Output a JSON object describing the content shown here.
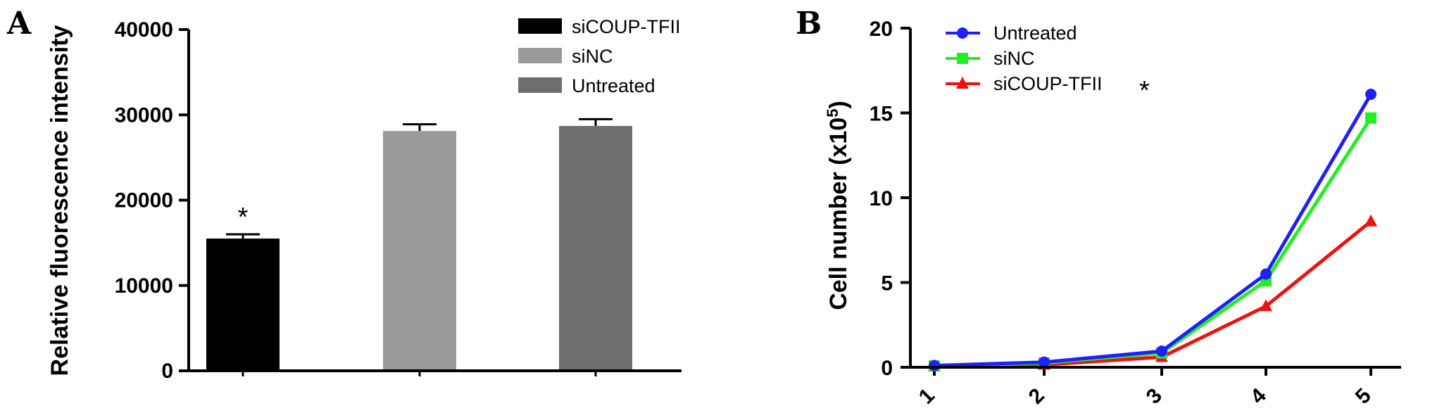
{
  "panel_a": {
    "letter": "A",
    "ylabel": "Relative fluorescence intensity",
    "significance": "*",
    "legend": [
      {
        "label": "siCOUP-TFII",
        "color": "#000000"
      },
      {
        "label": "siNC",
        "color": "#9a9a9a"
      },
      {
        "label": "Untreated",
        "color": "#6e6e6e"
      }
    ]
  },
  "panel_b": {
    "letter": "B",
    "ylabel": "Cell number (x10",
    "ylabel_sup": "5",
    "ylabel_close": ")",
    "significance": "*",
    "legend": [
      {
        "label": "Untreated",
        "color": "#1f1fff"
      },
      {
        "label": "siNC",
        "color": "#22ee22"
      },
      {
        "label": "siCOUP-TFII",
        "color": "#ee1111"
      }
    ]
  },
  "chart_data": [
    {
      "type": "bar",
      "categories": [
        "siCOUP-TFII",
        "siNC",
        "Untreated"
      ],
      "values": [
        15500,
        28100,
        28700
      ],
      "errors": [
        500,
        800,
        800
      ],
      "colors": [
        "#000000",
        "#9a9a9a",
        "#6e6e6e"
      ],
      "ylabel": "Relative fluorescence intensity",
      "ylim": [
        0,
        40000
      ],
      "yticks": [
        0,
        10000,
        20000,
        30000,
        40000
      ],
      "ytick_labels": [
        "0",
        "10000",
        "20000",
        "30000",
        "40000"
      ],
      "legend_position": "top-right",
      "grid": false
    },
    {
      "type": "line",
      "x": [
        1,
        2,
        3,
        4,
        5
      ],
      "xtick_labels": [
        "1",
        "2",
        "3",
        "4",
        "5"
      ],
      "series": [
        {
          "name": "Untreated",
          "color": "#1f1fff",
          "marker": "circle",
          "values": [
            0.1,
            0.3,
            0.95,
            5.5,
            16.1
          ]
        },
        {
          "name": "siNC",
          "color": "#22ee22",
          "marker": "square",
          "values": [
            0.08,
            0.25,
            0.85,
            5.1,
            14.7
          ]
        },
        {
          "name": "siCOUP-TFII",
          "color": "#ee1111",
          "marker": "triangle",
          "values": [
            0.05,
            0.15,
            0.6,
            3.6,
            8.6
          ]
        }
      ],
      "ylabel": "Cell number (x10^5)",
      "ylim": [
        0,
        20
      ],
      "yticks": [
        0,
        5,
        10,
        15,
        20
      ],
      "ytick_labels": [
        "0",
        "5",
        "10",
        "15",
        "20"
      ],
      "legend_position": "top-left",
      "grid": false
    }
  ]
}
